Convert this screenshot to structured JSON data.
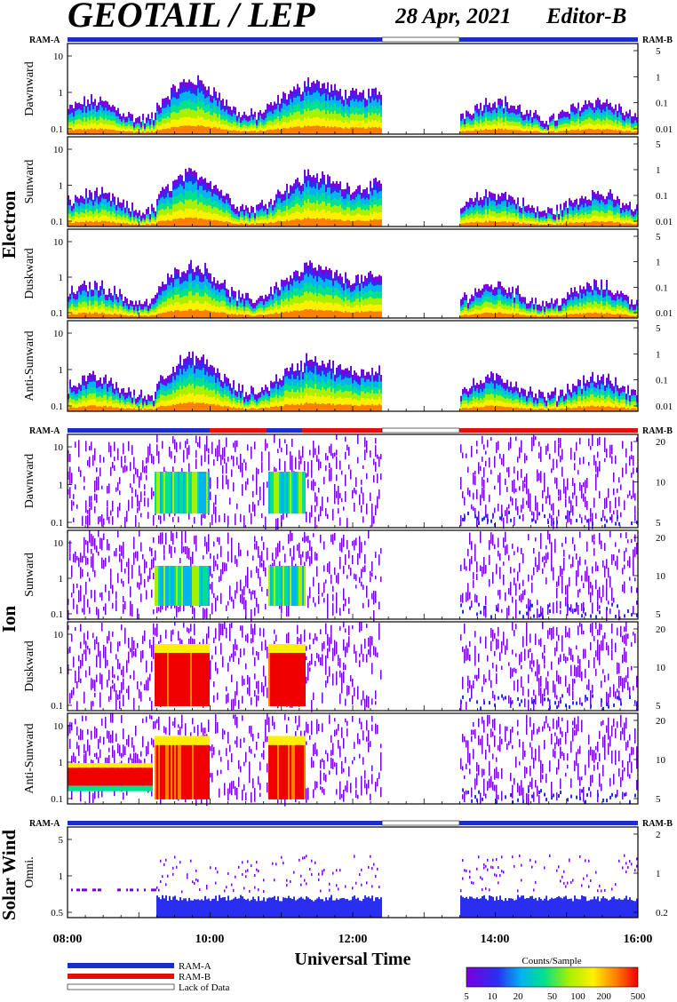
{
  "title": "GEOTAIL / LEP",
  "date": "28 Apr, 2021",
  "editor": "Editor-B",
  "ram_a": "RAM-A",
  "ram_b": "RAM-B",
  "group_labels": {
    "electron": "Electron",
    "ion": "Ion",
    "solar_wind": "Solar Wind"
  },
  "xlabel": "Universal Time",
  "legend": {
    "ram_a": "RAM-A",
    "ram_b": "RAM-B",
    "lack": "Lack of Data"
  },
  "colorbar": {
    "title": "Counts/Sample",
    "ticks": [
      "5",
      "10",
      "20",
      "50",
      "100",
      "200",
      "500"
    ]
  },
  "colors": {
    "ram_a": "#1a2ecc",
    "ram_b": "#e01010",
    "lack": "#ffffff"
  },
  "chart_data": {
    "type": "heatmap",
    "x_range": [
      "08:00",
      "16:00"
    ],
    "x_ticks": [
      "08:00",
      "10:00",
      "12:00",
      "14:00",
      "16:00"
    ],
    "data_gap": [
      "12:25",
      "13:30"
    ],
    "panels": [
      {
        "group": "Electron",
        "ylabel": "Dawnward",
        "left_ticks": [
          "0.1",
          "1",
          "10"
        ],
        "right_ticks": [
          "5",
          "1",
          "0.1",
          "0.01"
        ]
      },
      {
        "group": "Electron",
        "ylabel": "Sunward",
        "left_ticks": [
          "0.1",
          "1",
          "10"
        ],
        "right_ticks": [
          "5",
          "1",
          "0.1",
          "0.01"
        ]
      },
      {
        "group": "Electron",
        "ylabel": "Duskward",
        "left_ticks": [
          "0.1",
          "1",
          "10"
        ],
        "right_ticks": [
          "5",
          "1",
          "0.1",
          "0.01"
        ]
      },
      {
        "group": "Electron",
        "ylabel": "Anti-Sunward",
        "left_ticks": [
          "0.1",
          "1",
          "10"
        ],
        "right_ticks": [
          "5",
          "1",
          "0.1",
          "0.01"
        ]
      },
      {
        "group": "Ion",
        "ylabel": "Dawnward",
        "left_ticks": [
          "0.1",
          "1",
          "10"
        ],
        "right_ticks": [
          "20",
          "10",
          "5"
        ]
      },
      {
        "group": "Ion",
        "ylabel": "Sunward",
        "left_ticks": [
          "0.1",
          "1",
          "10"
        ],
        "right_ticks": [
          "20",
          "10",
          "5"
        ]
      },
      {
        "group": "Ion",
        "ylabel": "Duskward",
        "left_ticks": [
          "0.1",
          "1",
          "10"
        ],
        "right_ticks": [
          "20",
          "10",
          "5"
        ]
      },
      {
        "group": "Ion",
        "ylabel": "Anti-Sunward",
        "left_ticks": [
          "0.1",
          "1",
          "10"
        ],
        "right_ticks": [
          "20",
          "10",
          "5"
        ]
      },
      {
        "group": "Solar Wind",
        "ylabel": "Omni.",
        "left_ticks": [
          "0.5",
          "1",
          "5"
        ],
        "right_ticks": [
          "2",
          "1",
          "0.2"
        ]
      }
    ]
  }
}
